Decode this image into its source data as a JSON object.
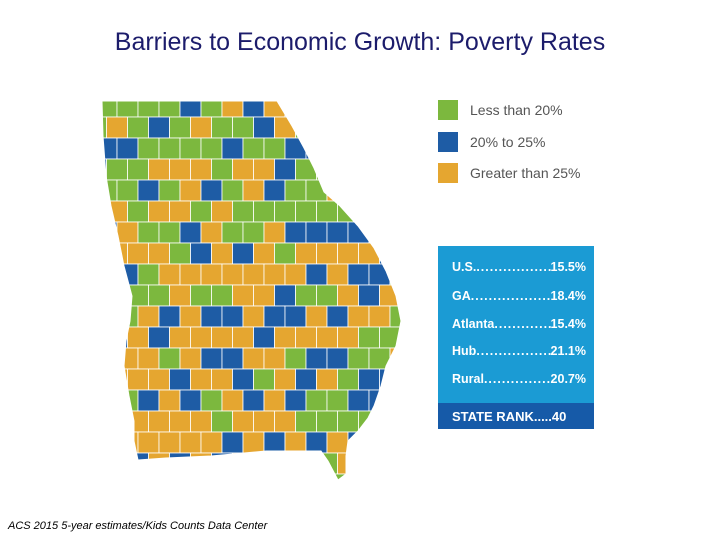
{
  "title": "Barriers to Economic Growth: Poverty Rates",
  "legend": [
    {
      "label": "Less than 20%",
      "color": "#7cb83e"
    },
    {
      "label": "20% to 25%",
      "color": "#1e5ca5"
    },
    {
      "label": "Greater than 25%",
      "color": "#e5a630"
    }
  ],
  "stats": [
    {
      "label": "U.S.",
      "value": "15.5%"
    },
    {
      "label": "GA",
      "value": "18.4%"
    },
    {
      "label": "Atlanta",
      "value": "15.4%"
    },
    {
      "label": "Hub",
      "value": "21.1%"
    },
    {
      "label": "Rural",
      "value": "20.7%"
    }
  ],
  "state_rank": "STATE RANK.....40",
  "source": "ACS 2015 5-year estimates/Kids Counts Data Center",
  "map": {
    "colors": {
      "green": "#7cb83e",
      "blue": "#1e5ca5",
      "orange": "#e5a630",
      "border": "#ffffff"
    }
  }
}
